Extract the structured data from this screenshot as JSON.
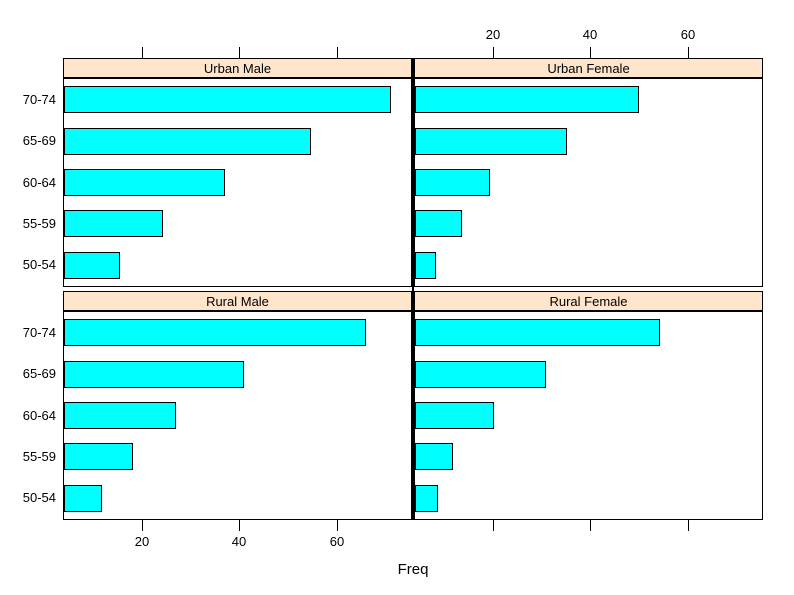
{
  "figure": {
    "background": "#ffffff"
  },
  "chart_data": {
    "type": "bar",
    "orientation": "horizontal",
    "title": "",
    "xlabel": "Freq",
    "ylabel": "",
    "categories": [
      "70-74",
      "65-69",
      "60-64",
      "55-59",
      "50-54"
    ],
    "x_ticks": [
      20,
      40,
      60
    ],
    "xlim": [
      4.0,
      75.2
    ],
    "grid": "off",
    "bar_color": "#00FFFF",
    "bar_border_color": "#000000",
    "strip_color": "#FFE5CC",
    "panel_border_color": "#000000",
    "layout": {
      "rows": 2,
      "columns": 2,
      "strip_position": "top",
      "top_axis_labels_column": "right",
      "bottom_axis_labels_column": "left",
      "y_labels_column": "left"
    },
    "panels": [
      {
        "title": "Urban Male",
        "position": "top-left",
        "values": [
          71.1,
          54.6,
          37.0,
          24.3,
          15.4
        ]
      },
      {
        "title": "Urban Female",
        "position": "top-right",
        "values": [
          50.0,
          35.1,
          19.3,
          13.6,
          8.4
        ]
      },
      {
        "title": "Rural Male",
        "position": "bottom-left",
        "values": [
          66.0,
          41.0,
          26.9,
          18.1,
          11.7
        ]
      },
      {
        "title": "Rural Female",
        "position": "bottom-right",
        "values": [
          54.3,
          30.9,
          20.3,
          11.7,
          8.7
        ]
      }
    ]
  }
}
